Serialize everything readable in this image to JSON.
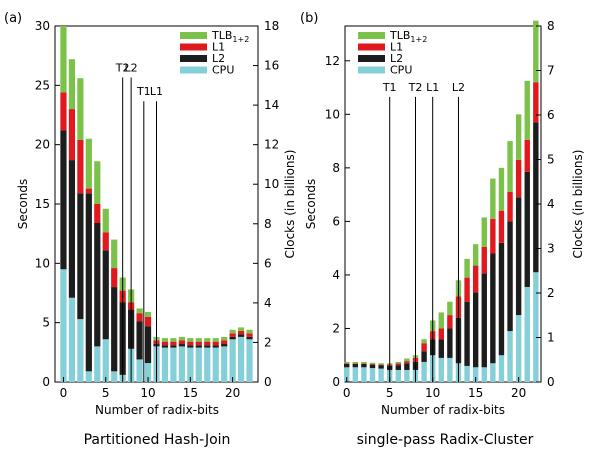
{
  "figure": {
    "panels": [
      {
        "tag": "(a)",
        "caption": "Partitioned Hash-Join",
        "xlabel": "Number of radix-bits",
        "ylabel": "Seconds",
        "y2label": "Clocks (in billions)",
        "legend": [
          "TLB",
          "L1",
          "L2",
          "CPU"
        ],
        "legend_sub": "1+2",
        "xticks": [
          "0",
          "5",
          "10",
          "15",
          "20"
        ],
        "yticks": [
          "0",
          "5",
          "10",
          "15",
          "20",
          "25",
          "30"
        ],
        "y2ticks": [
          "0",
          "2",
          "4",
          "6",
          "8",
          "10",
          "12",
          "14",
          "16",
          "18"
        ],
        "annotations": [
          {
            "label": "T2",
            "x": 7,
            "y": 26
          },
          {
            "label": "L2",
            "x": 8,
            "y": 26
          },
          {
            "label": "T1",
            "x": 9.5,
            "y": 24
          },
          {
            "label": "L1",
            "x": 11,
            "y": 24
          }
        ]
      },
      {
        "tag": "(b)",
        "caption": "single-pass Radix-Cluster",
        "xlabel": "Number of radix-bits",
        "ylabel": "Seconds",
        "y2label": "Clocks (in billions)",
        "legend": [
          "TLB",
          "L1",
          "L2",
          "CPU"
        ],
        "legend_sub": "1+2",
        "xticks": [
          "0",
          "5",
          "10",
          "15",
          "20"
        ],
        "yticks": [
          "0",
          "2",
          "4",
          "6",
          "8",
          "10",
          "12"
        ],
        "y2ticks": [
          "0",
          "1",
          "2",
          "3",
          "4",
          "5",
          "6",
          "7",
          "8"
        ],
        "annotations": [
          {
            "label": "T1",
            "x": 5,
            "y": 10.8
          },
          {
            "label": "T2",
            "x": 8,
            "y": 10.8
          },
          {
            "label": "L1",
            "x": 10,
            "y": 10.8
          },
          {
            "label": "L2",
            "x": 13,
            "y": 10.8
          }
        ]
      }
    ]
  },
  "colors": {
    "TLB": "#7cc24a",
    "L1": "#e0191e",
    "L2": "#1d1d1d",
    "CPU": "#85cfd9"
  },
  "chart_data": [
    {
      "type": "bar",
      "stacked": true,
      "title": "Partitioned Hash-Join",
      "xlabel": "Number of radix-bits",
      "ylabel": "Seconds",
      "y2label": "Clocks (in billions)",
      "x": [
        0,
        1,
        2,
        3,
        4,
        5,
        6,
        7,
        8,
        9,
        10,
        11,
        12,
        13,
        14,
        15,
        16,
        17,
        18,
        19,
        20,
        21,
        22
      ],
      "xlim": [
        -1,
        23
      ],
      "ylim": [
        0,
        30
      ],
      "y2lim": [
        0,
        18
      ],
      "grid": false,
      "legend_position": "top-right",
      "series": [
        {
          "name": "CPU",
          "values": [
            9.5,
            7.1,
            5.3,
            0.9,
            3.0,
            3.6,
            0.9,
            0.6,
            2.8,
            1.9,
            1.6,
            3.0,
            2.9,
            2.9,
            3.0,
            2.9,
            2.9,
            2.9,
            2.9,
            3.0,
            3.6,
            3.8,
            3.6
          ]
        },
        {
          "name": "L2",
          "values": [
            11.7,
            11.6,
            10.6,
            15.0,
            10.4,
            7.5,
            7.1,
            6.1,
            3.3,
            3.2,
            3.1,
            0.2,
            0.2,
            0.2,
            0.2,
            0.2,
            0.2,
            0.2,
            0.2,
            0.2,
            0.2,
            0.2,
            0.2
          ]
        },
        {
          "name": "L1",
          "values": [
            3.2,
            4.3,
            4.5,
            0.4,
            1.6,
            1.5,
            1.6,
            1.0,
            0.6,
            0.7,
            0.8,
            0.3,
            0.3,
            0.3,
            0.3,
            0.3,
            0.3,
            0.3,
            0.3,
            0.3,
            0.3,
            0.3,
            0.3
          ]
        },
        {
          "name": "TLB",
          "values": [
            5.6,
            4.2,
            5.2,
            4.2,
            3.6,
            2.0,
            2.4,
            1.1,
            1.1,
            0.4,
            0.4,
            0.3,
            0.3,
            0.3,
            0.3,
            0.3,
            0.3,
            0.3,
            0.3,
            0.3,
            0.3,
            0.3,
            0.3
          ]
        }
      ]
    },
    {
      "type": "bar",
      "stacked": true,
      "title": "single-pass Radix-Cluster",
      "xlabel": "Number of radix-bits",
      "ylabel": "Seconds",
      "y2label": "Clocks (in billions)",
      "x": [
        0,
        1,
        2,
        3,
        4,
        5,
        6,
        7,
        8,
        9,
        10,
        11,
        12,
        13,
        14,
        15,
        16,
        17,
        18,
        19,
        20,
        21,
        22
      ],
      "xlim": [
        -0.2,
        22.6
      ],
      "ylim": [
        0,
        13.3
      ],
      "y2lim": [
        0,
        8
      ],
      "grid": false,
      "legend_position": "top-left",
      "series": [
        {
          "name": "CPU",
          "values": [
            0.55,
            0.55,
            0.55,
            0.52,
            0.5,
            0.45,
            0.45,
            0.45,
            0.45,
            0.75,
            1.0,
            0.9,
            0.9,
            0.7,
            0.6,
            0.55,
            0.55,
            0.7,
            1.0,
            1.9,
            2.5,
            3.55,
            4.1
          ]
        },
        {
          "name": "L2",
          "values": [
            0.13,
            0.13,
            0.13,
            0.13,
            0.13,
            0.15,
            0.18,
            0.25,
            0.3,
            0.4,
            0.6,
            0.7,
            1.1,
            1.7,
            2.4,
            2.8,
            3.5,
            4.1,
            4.2,
            4.1,
            4.4,
            4.3,
            5.6
          ]
        },
        {
          "name": "L1",
          "values": [
            0.02,
            0.02,
            0.02,
            0.02,
            0.02,
            0.05,
            0.07,
            0.08,
            0.15,
            0.3,
            0.3,
            0.4,
            0.5,
            0.8,
            0.9,
            1.0,
            1.0,
            1.3,
            1.2,
            1.1,
            1.4,
            1.2,
            1.5
          ]
        },
        {
          "name": "TLB",
          "values": [
            0.05,
            0.05,
            0.05,
            0.05,
            0.05,
            0.05,
            0.05,
            0.1,
            0.1,
            0.15,
            0.4,
            0.6,
            0.5,
            0.6,
            0.7,
            0.8,
            1.1,
            1.5,
            1.6,
            1.9,
            1.7,
            2.2,
            2.3
          ]
        }
      ]
    }
  ]
}
